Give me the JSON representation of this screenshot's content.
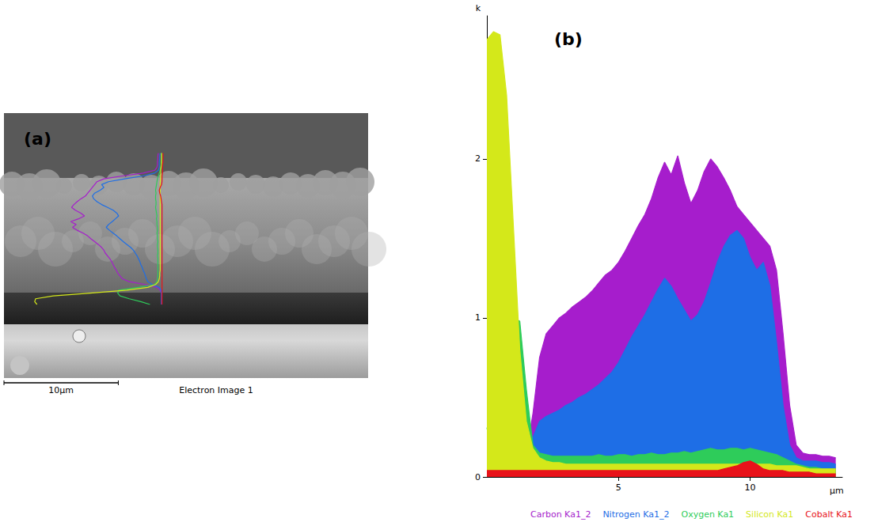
{
  "image_panel": {
    "panel_label": "(a)",
    "scale_bar": {
      "label": "10µm",
      "length": 10
    },
    "caption": "Electron Image 1"
  },
  "chart_data": {
    "type": "area",
    "panel_label": "(b)",
    "x_label": "µm",
    "y_label": "k",
    "x": [
      0,
      0.25,
      0.5,
      0.75,
      1,
      1.25,
      1.5,
      1.75,
      2,
      2.25,
      2.5,
      2.75,
      3,
      3.25,
      3.5,
      3.75,
      4,
      4.25,
      4.5,
      4.75,
      5,
      5.25,
      5.5,
      5.75,
      6,
      6.25,
      6.5,
      6.75,
      7,
      7.25,
      7.5,
      7.75,
      8,
      8.25,
      8.5,
      8.75,
      9,
      9.25,
      9.5,
      9.75,
      10,
      10.25,
      10.5,
      10.75,
      11,
      11.25,
      11.5,
      11.75,
      12,
      12.25,
      12.5,
      12.75,
      13,
      13.25
    ],
    "series": [
      {
        "name": "Carbon Ka1_2",
        "color": "#a61dcc",
        "values": [
          0.05,
          0.05,
          0.05,
          0.05,
          0.05,
          0.08,
          0.15,
          0.4,
          0.75,
          0.9,
          0.95,
          1.0,
          1.03,
          1.07,
          1.1,
          1.13,
          1.17,
          1.22,
          1.27,
          1.3,
          1.35,
          1.42,
          1.5,
          1.58,
          1.65,
          1.75,
          1.88,
          1.98,
          1.9,
          2.02,
          1.85,
          1.72,
          1.8,
          1.92,
          2.0,
          1.95,
          1.88,
          1.8,
          1.7,
          1.65,
          1.6,
          1.55,
          1.5,
          1.45,
          1.3,
          0.9,
          0.45,
          0.2,
          0.15,
          0.14,
          0.14,
          0.13,
          0.13,
          0.12
        ]
      },
      {
        "name": "Nitrogen Ka1_2",
        "color": "#1e6ee6",
        "values": [
          0.05,
          0.05,
          0.05,
          0.05,
          0.05,
          0.06,
          0.1,
          0.25,
          0.35,
          0.38,
          0.4,
          0.42,
          0.45,
          0.47,
          0.5,
          0.52,
          0.55,
          0.58,
          0.62,
          0.66,
          0.72,
          0.8,
          0.88,
          0.95,
          1.02,
          1.1,
          1.18,
          1.25,
          1.2,
          1.12,
          1.05,
          0.98,
          1.02,
          1.1,
          1.22,
          1.35,
          1.45,
          1.52,
          1.55,
          1.5,
          1.38,
          1.3,
          1.35,
          1.2,
          0.85,
          0.45,
          0.2,
          0.12,
          0.1,
          0.1,
          0.1,
          0.09,
          0.09,
          0.08
        ]
      },
      {
        "name": "Oxygen Ka1",
        "color": "#2ecc5a",
        "values": [
          0.3,
          0.5,
          0.75,
          0.95,
          1.0,
          0.98,
          0.55,
          0.2,
          0.15,
          0.14,
          0.13,
          0.13,
          0.13,
          0.13,
          0.13,
          0.13,
          0.13,
          0.14,
          0.13,
          0.13,
          0.14,
          0.14,
          0.13,
          0.14,
          0.14,
          0.15,
          0.14,
          0.14,
          0.15,
          0.15,
          0.16,
          0.15,
          0.16,
          0.17,
          0.18,
          0.17,
          0.17,
          0.18,
          0.18,
          0.17,
          0.18,
          0.17,
          0.16,
          0.15,
          0.14,
          0.12,
          0.1,
          0.08,
          0.07,
          0.06,
          0.06,
          0.05,
          0.05,
          0.05
        ]
      },
      {
        "name": "Silicon Ka1",
        "color": "#d4e81a",
        "values": [
          2.75,
          2.8,
          2.78,
          2.4,
          1.6,
          0.8,
          0.35,
          0.18,
          0.12,
          0.1,
          0.09,
          0.09,
          0.08,
          0.08,
          0.08,
          0.08,
          0.08,
          0.08,
          0.08,
          0.08,
          0.08,
          0.08,
          0.08,
          0.08,
          0.08,
          0.08,
          0.08,
          0.08,
          0.08,
          0.08,
          0.08,
          0.08,
          0.08,
          0.08,
          0.08,
          0.08,
          0.08,
          0.08,
          0.08,
          0.08,
          0.08,
          0.08,
          0.08,
          0.08,
          0.07,
          0.07,
          0.07,
          0.07,
          0.06,
          0.05,
          0.05,
          0.05,
          0.05,
          0.05
        ]
      },
      {
        "name": "Cobalt Ka1",
        "color": "#e8121a",
        "values": [
          0.04,
          0.04,
          0.04,
          0.04,
          0.04,
          0.04,
          0.04,
          0.04,
          0.04,
          0.04,
          0.04,
          0.04,
          0.04,
          0.04,
          0.04,
          0.04,
          0.04,
          0.04,
          0.04,
          0.04,
          0.04,
          0.04,
          0.04,
          0.04,
          0.04,
          0.04,
          0.04,
          0.04,
          0.04,
          0.04,
          0.04,
          0.04,
          0.04,
          0.04,
          0.04,
          0.04,
          0.05,
          0.06,
          0.07,
          0.09,
          0.1,
          0.08,
          0.05,
          0.04,
          0.04,
          0.04,
          0.03,
          0.03,
          0.03,
          0.03,
          0.02,
          0.02,
          0.02,
          0.02
        ]
      }
    ],
    "xlim": [
      0,
      13.5
    ],
    "xticks": [
      5,
      10
    ],
    "ylim": [
      0,
      2.9
    ],
    "yticks": [
      0,
      1,
      2
    ],
    "legend": "bottom",
    "grid": false
  }
}
